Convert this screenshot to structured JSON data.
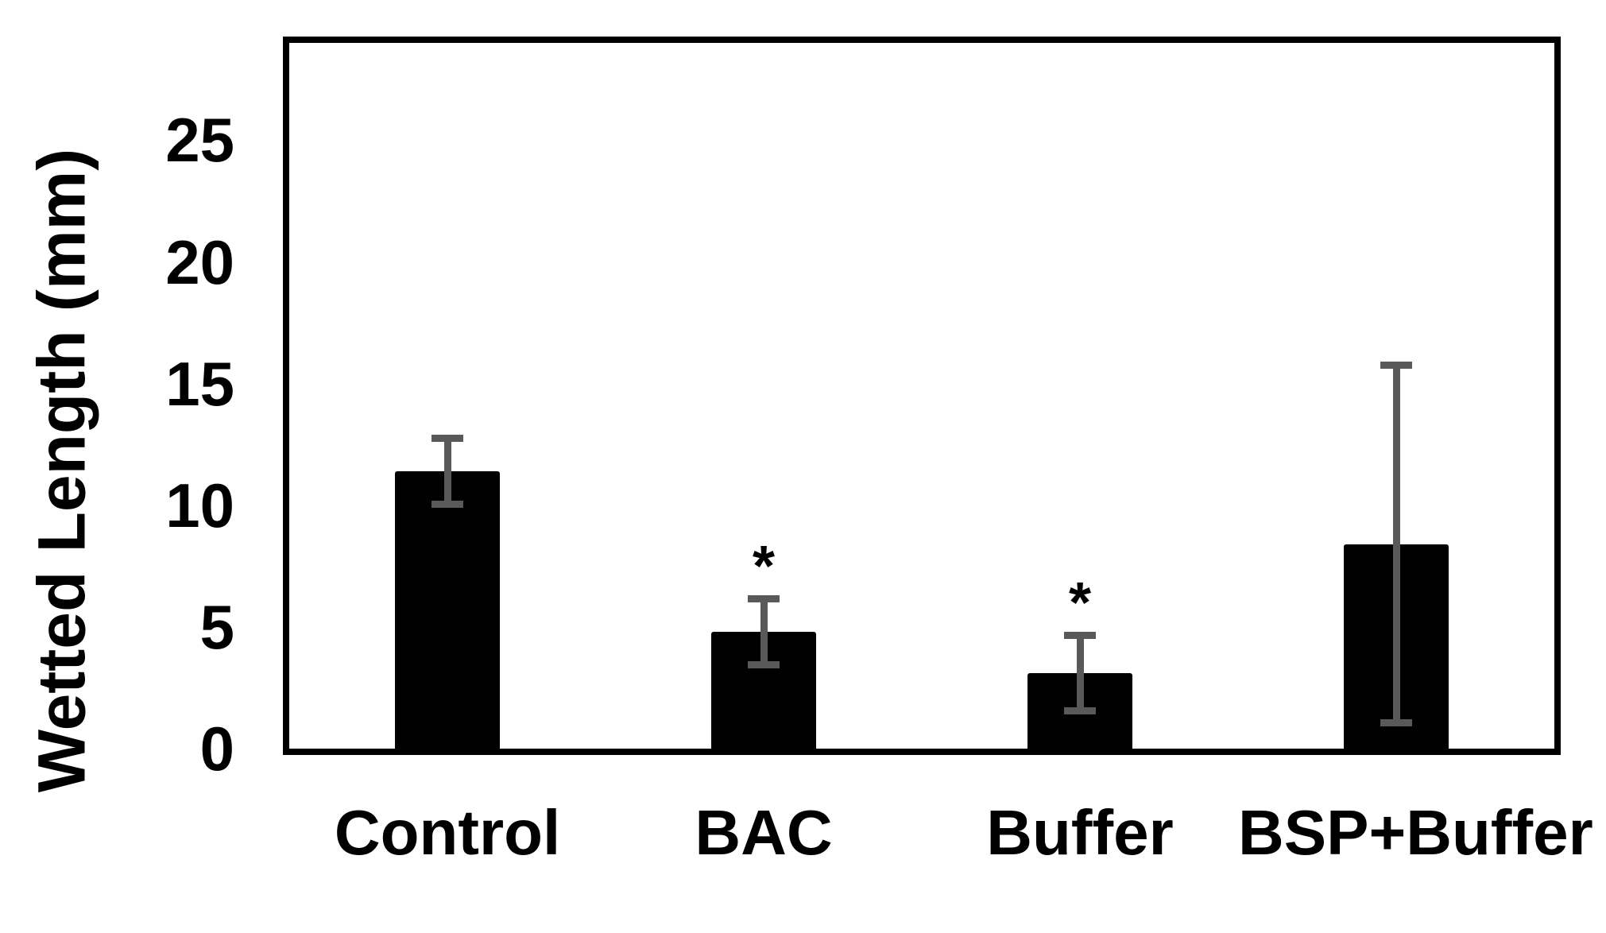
{
  "chart_data": {
    "type": "bar",
    "title": "",
    "xlabel": "",
    "ylabel": "Wetted Length (mm)",
    "categories": [
      "Control",
      "BAC",
      "Buffer",
      "BSP+Buffer"
    ],
    "values": [
      11.4,
      4.8,
      3.1,
      8.4
    ],
    "errors": [
      1.5,
      1.5,
      1.7,
      7.5
    ],
    "significance": [
      "",
      "*",
      "*",
      ""
    ],
    "yticks": [
      "0",
      "5",
      "10",
      "15",
      "20",
      "25"
    ],
    "ytick_values": [
      0,
      5,
      10,
      15,
      20,
      25
    ],
    "ylim": [
      0,
      29
    ],
    "grid": false,
    "legend": false,
    "bar_color": "#000000",
    "error_bar_color": "#595959",
    "axis_color": "#000000",
    "background_color": "#ffffff"
  }
}
